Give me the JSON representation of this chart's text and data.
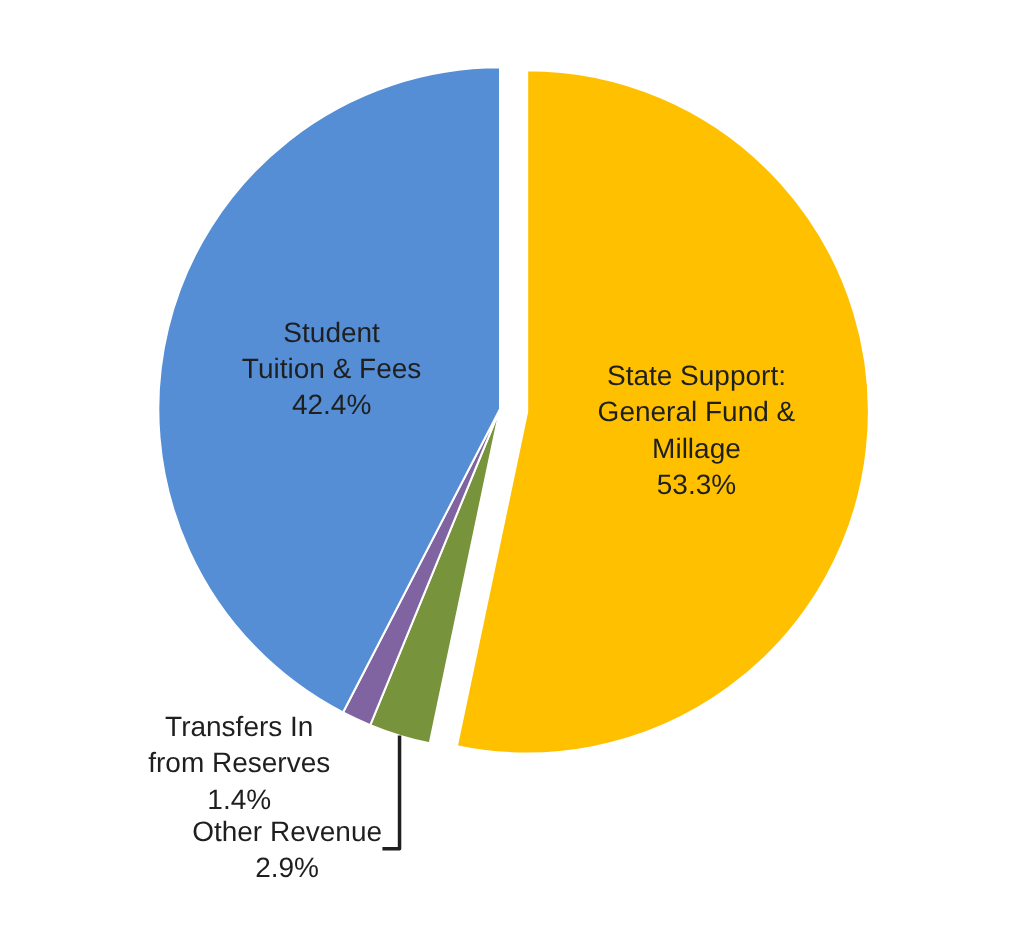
{
  "chart_data": {
    "type": "pie",
    "categories": [
      "State Support: General Fund & Millage",
      "Other Revenue",
      "Transfers In from Reserves",
      "Student Tuition & Fees"
    ],
    "values": [
      53.3,
      2.9,
      1.4,
      42.4
    ],
    "value_labels": [
      "53.3%",
      "2.9%",
      "1.4%",
      "42.4%"
    ],
    "colors": [
      "#ffc000",
      "#77933c",
      "#8064a2",
      "#558ed5"
    ]
  }
}
